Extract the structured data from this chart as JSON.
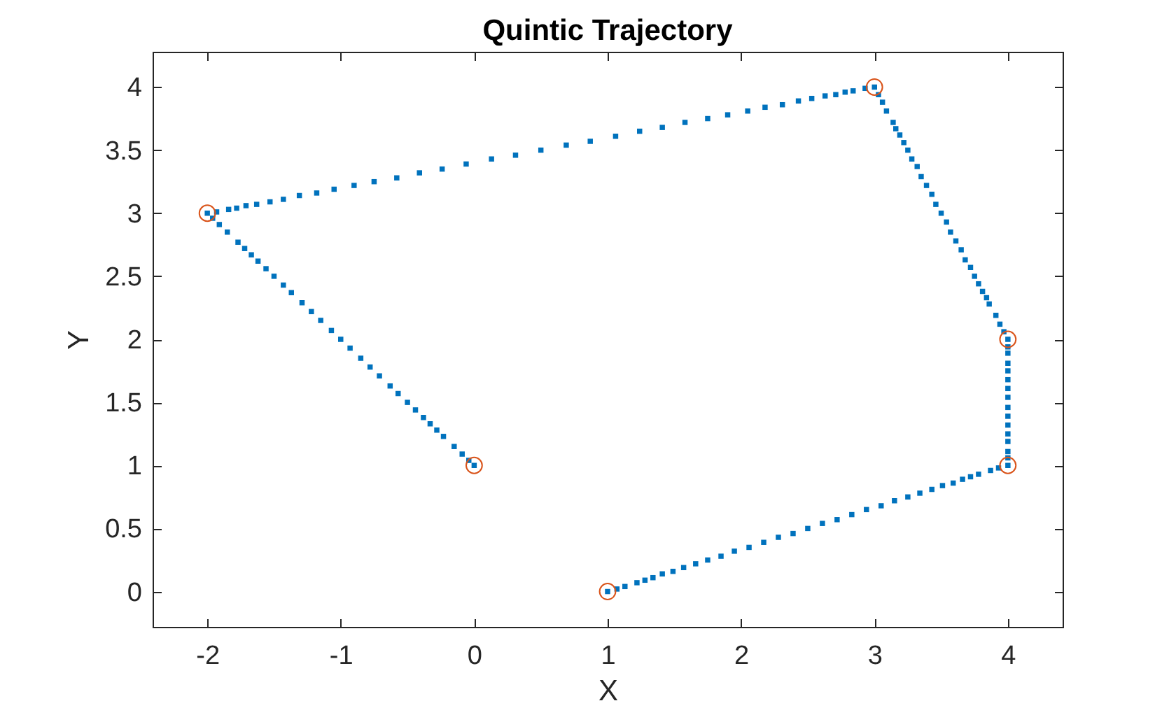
{
  "chart_data": {
    "type": "scatter",
    "title": "Quintic Trajectory",
    "xlabel": "X",
    "ylabel": "Y",
    "xlim": [
      -2.41,
      4.41
    ],
    "ylim": [
      -0.28,
      4.28
    ],
    "xticks": [
      -2,
      -1,
      0,
      1,
      2,
      3,
      4
    ],
    "yticks": [
      0,
      0.5,
      1,
      1.5,
      2,
      2.5,
      3,
      3.5,
      4
    ],
    "series": [
      {
        "color": "#0072bd",
        "marker": "square",
        "x": [
          1.0,
          1.07,
          1.13,
          1.22,
          1.28,
          1.34,
          1.41,
          1.49,
          1.57,
          1.66,
          1.75,
          1.85,
          1.95,
          2.06,
          2.17,
          2.28,
          2.39,
          2.5,
          2.61,
          2.72,
          2.83,
          2.94,
          3.05,
          3.15,
          3.25,
          3.34,
          3.43,
          3.51,
          3.59,
          3.66,
          3.72,
          3.78,
          3.87,
          3.93,
          4.0
        ],
        "values": [
          0,
          0.02,
          0.04,
          0.07,
          0.09,
          0.11,
          0.14,
          0.16,
          0.19,
          0.22,
          0.25,
          0.28,
          0.32,
          0.35,
          0.39,
          0.43,
          0.46,
          0.5,
          0.54,
          0.57,
          0.61,
          0.65,
          0.68,
          0.72,
          0.75,
          0.78,
          0.81,
          0.84,
          0.86,
          0.89,
          0.91,
          0.93,
          0.96,
          0.98,
          1
        ]
      },
      {
        "color": "#0072bd",
        "marker": "square",
        "x": [
          4,
          4,
          4,
          4,
          4,
          4,
          4,
          4,
          4,
          4,
          4,
          4,
          4,
          4,
          4
        ],
        "values": [
          1.06,
          1.11,
          1.19,
          1.25,
          1.32,
          1.39,
          1.46,
          1.54,
          1.61,
          1.68,
          1.75,
          1.81,
          1.89,
          1.94,
          2.0
        ]
      },
      {
        "color": "#0072bd",
        "marker": "square",
        "x": [
          3.97,
          3.94,
          3.91,
          3.86,
          3.84,
          3.81,
          3.78,
          3.75,
          3.72,
          3.68,
          3.65,
          3.61,
          3.57,
          3.54,
          3.5,
          3.46,
          3.43,
          3.39,
          3.35,
          3.32,
          3.28,
          3.25,
          3.22,
          3.19,
          3.16,
          3.14,
          3.09,
          3.06,
          3.03,
          3.0
        ],
        "values": [
          2.06,
          2.12,
          2.19,
          2.28,
          2.33,
          2.38,
          2.44,
          2.5,
          2.57,
          2.63,
          2.71,
          2.78,
          2.85,
          2.93,
          3.0,
          3.07,
          3.15,
          3.22,
          3.29,
          3.37,
          3.43,
          3.5,
          3.56,
          3.62,
          3.67,
          3.72,
          3.81,
          3.88,
          3.94,
          4.0
        ]
      },
      {
        "color": "#0072bd",
        "marker": "square",
        "x": [
          2.93,
          2.84,
          2.78,
          2.71,
          2.63,
          2.53,
          2.43,
          2.31,
          2.18,
          2.05,
          1.9,
          1.75,
          1.58,
          1.41,
          1.24,
          1.06,
          0.87,
          0.69,
          0.5,
          0.31,
          0.13,
          -0.06,
          -0.24,
          -0.41,
          -0.58,
          -0.75,
          -0.9,
          -1.05,
          -1.18,
          -1.31,
          -1.43,
          -1.53,
          -1.63,
          -1.71,
          -1.78,
          -1.84,
          -1.93,
          -2.0
        ],
        "values": [
          3.99,
          3.97,
          3.96,
          3.94,
          3.93,
          3.91,
          3.89,
          3.86,
          3.84,
          3.81,
          3.78,
          3.75,
          3.72,
          3.68,
          3.65,
          3.61,
          3.57,
          3.54,
          3.5,
          3.46,
          3.43,
          3.39,
          3.35,
          3.32,
          3.28,
          3.25,
          3.22,
          3.19,
          3.16,
          3.14,
          3.11,
          3.09,
          3.07,
          3.06,
          3.04,
          3.03,
          3.01,
          3.0
        ]
      },
      {
        "color": "#0072bd",
        "marker": "square",
        "x": [
          -1.96,
          -1.91,
          -1.85,
          -1.77,
          -1.72,
          -1.67,
          -1.62,
          -1.56,
          -1.5,
          -1.43,
          -1.37,
          -1.29,
          -1.22,
          -1.15,
          -1.07,
          -1.0,
          -0.93,
          -0.85,
          -0.78,
          -0.71,
          -0.63,
          -0.57,
          -0.5,
          -0.44,
          -0.38,
          -0.33,
          -0.28,
          -0.23,
          -0.15,
          -0.09,
          -0.04,
          0
        ],
        "values": [
          2.96,
          2.91,
          2.85,
          2.77,
          2.72,
          2.67,
          2.62,
          2.56,
          2.5,
          2.43,
          2.37,
          2.29,
          2.22,
          2.15,
          2.07,
          2.0,
          1.93,
          1.85,
          1.78,
          1.71,
          1.63,
          1.57,
          1.5,
          1.44,
          1.38,
          1.33,
          1.28,
          1.23,
          1.15,
          1.09,
          1.04,
          1
        ]
      },
      {
        "color": "#d95319",
        "marker": "circle",
        "x": [
          1,
          4,
          4,
          3,
          -2,
          0
        ],
        "values": [
          0,
          1,
          2,
          4,
          3,
          1
        ]
      }
    ]
  }
}
